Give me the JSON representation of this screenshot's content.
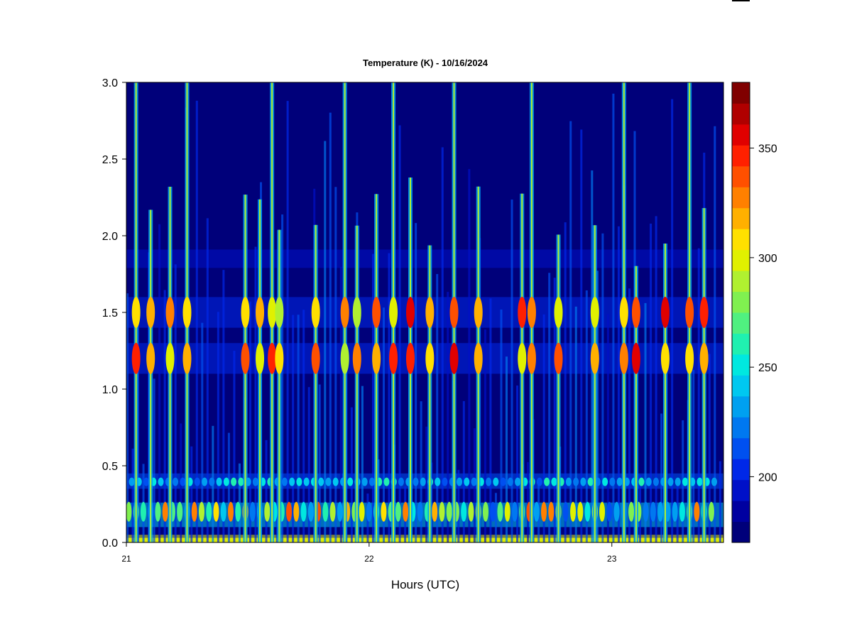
{
  "chart_data": {
    "type": "heatmap",
    "title": "Temperature (K) - 10/16/2024",
    "xlabel": "Hours (UTC)",
    "ylabel": "",
    "xlim": [
      21,
      23.46
    ],
    "ylim": [
      0,
      3.0
    ],
    "x_ticks": [
      "21",
      "22",
      "23"
    ],
    "y_ticks": [
      "0.0",
      "0.5",
      "1.0",
      "1.5",
      "2.0",
      "2.5",
      "3.0"
    ],
    "colorbar": {
      "range": [
        170,
        380
      ],
      "ticks": [
        "200",
        "250",
        "300",
        "350"
      ],
      "colors": [
        "#00007a",
        "#0000a0",
        "#0010c8",
        "#0028e8",
        "#0050f0",
        "#0078f0",
        "#00a0f0",
        "#00c8f0",
        "#00e8e0",
        "#20f0b0",
        "#50f080",
        "#80f050",
        "#b0f030",
        "#e0f000",
        "#ffe000",
        "#ffb000",
        "#ff8000",
        "#ff5000",
        "#ff2000",
        "#e00000",
        "#b00000",
        "#800000"
      ]
    },
    "background_value": 178,
    "notes_series": {
      "bright_columns_hours": [
        21.04,
        21.1,
        21.18,
        21.25,
        21.49,
        21.55,
        21.6,
        21.63,
        21.78,
        21.9,
        21.95,
        22.03,
        22.1,
        22.17,
        22.25,
        22.35,
        22.45,
        22.63,
        22.67,
        22.78,
        22.93,
        23.05,
        23.1,
        23.22,
        23.32,
        23.38
      ],
      "persistent_band_heights_km": [
        0.02,
        0.18,
        0.4,
        1.2,
        1.5,
        1.85
      ]
    }
  }
}
